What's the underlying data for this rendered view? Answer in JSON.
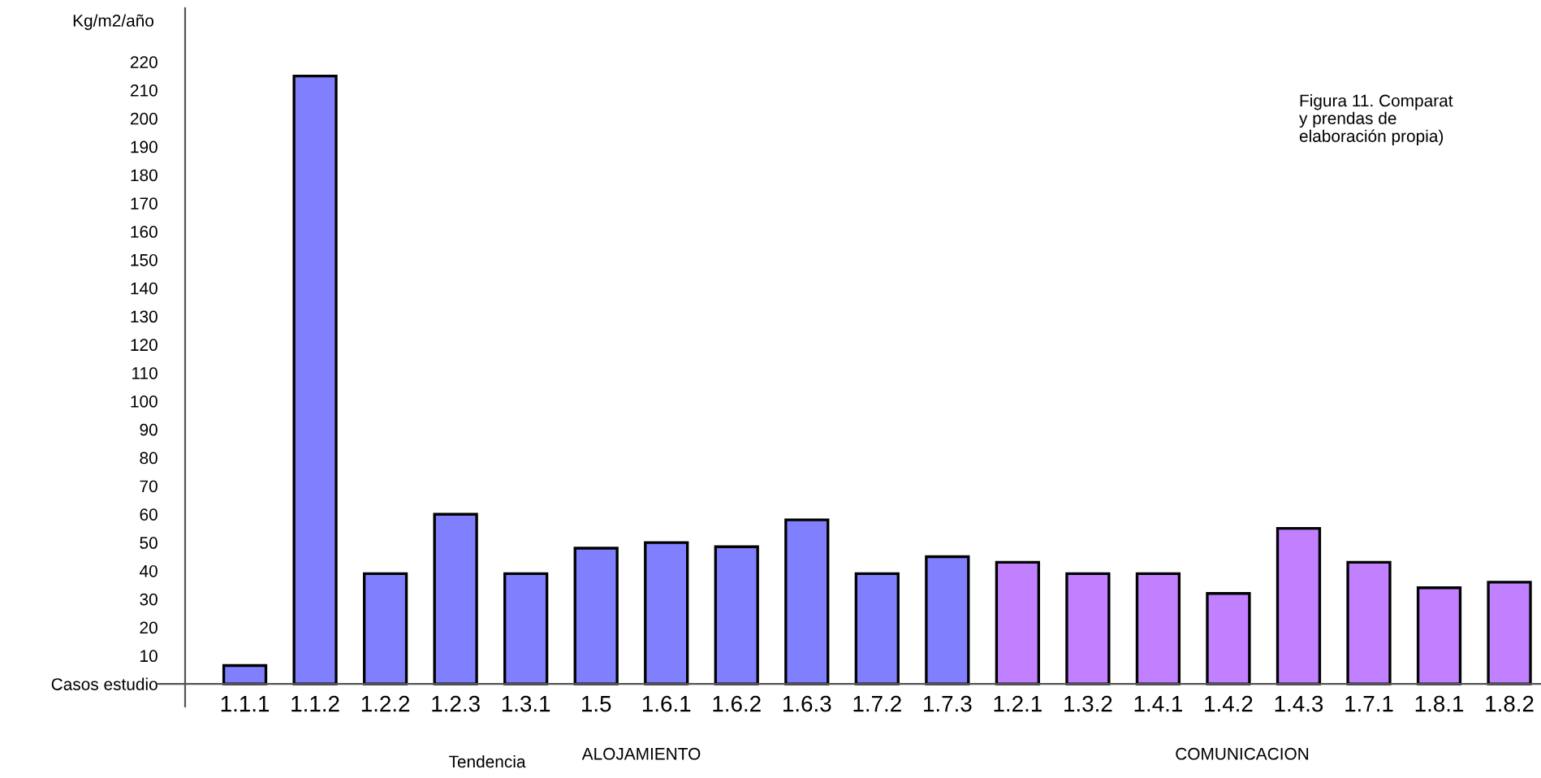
{
  "chart_data": {
    "type": "bar",
    "ylabel": "Kg/m2/año",
    "xlabel": "Tendencia",
    "categories": [
      "1.1.1",
      "1.1.2",
      "1.2.2",
      "1.2.3",
      "1.3.1",
      "1.5",
      "1.6.1",
      "1.6.2",
      "1.6.3",
      "1.7.2",
      "1.7.3",
      "1.2.1",
      "1.3.2",
      "1.4.1",
      "1.4.2",
      "1.4.3",
      "1.7.1",
      "1.8.1",
      "1.8.2"
    ],
    "values": [
      6.5,
      215,
      39,
      60,
      39,
      48,
      50,
      48.5,
      58,
      39,
      45,
      43,
      39,
      39,
      32,
      55,
      43,
      34,
      36
    ],
    "colors": [
      "#8080ff",
      "#8080ff",
      "#8080ff",
      "#8080ff",
      "#8080ff",
      "#8080ff",
      "#8080ff",
      "#8080ff",
      "#8080ff",
      "#8080ff",
      "#8080ff",
      "#c080ff",
      "#c080ff",
      "#c080ff",
      "#c080ff",
      "#c080ff",
      "#c080ff",
      "#c080ff",
      "#c080ff"
    ],
    "ylim": [
      -8,
      239
    ],
    "yticks": [
      {
        "value": 0,
        "label": "Casos estudio"
      },
      10,
      20,
      30,
      40,
      50,
      60,
      70,
      80,
      90,
      100,
      110,
      120,
      130,
      140,
      150,
      160,
      170,
      180,
      190,
      200,
      210,
      220
    ],
    "grid": false,
    "legend": false,
    "annotations": [
      "ALOJAMIENTO",
      "COMUNICACION",
      "Figura 11. Comparat\ny prendas de\nelaboración propia)"
    ]
  }
}
